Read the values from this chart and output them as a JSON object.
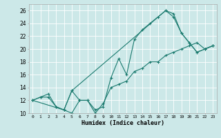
{
  "xlabel": "Humidex (Indice chaleur)",
  "bg_color": "#cce8e8",
  "grid_color": "#ffffff",
  "line_color": "#1a7a6e",
  "xlim": [
    -0.5,
    23.5
  ],
  "ylim": [
    10,
    27
  ],
  "xticks": [
    0,
    1,
    2,
    3,
    4,
    5,
    6,
    7,
    8,
    9,
    10,
    11,
    12,
    13,
    14,
    15,
    16,
    17,
    18,
    19,
    20,
    21,
    22,
    23
  ],
  "yticks": [
    10,
    12,
    14,
    16,
    18,
    20,
    22,
    24,
    26
  ],
  "line1_x": [
    0,
    1,
    2,
    3,
    4,
    5,
    6,
    7,
    8,
    9,
    10,
    11,
    12,
    13,
    14,
    15,
    16,
    17,
    18,
    19,
    20,
    21,
    22,
    23
  ],
  "line1_y": [
    12,
    12.5,
    13,
    11,
    10.5,
    13.5,
    12,
    12,
    10.5,
    11,
    15.5,
    18.5,
    16,
    21.5,
    23,
    24,
    25,
    26,
    25,
    22.5,
    21,
    19.5,
    20,
    20.5
  ],
  "line2_x": [
    0,
    1,
    2,
    3,
    4,
    5,
    6,
    7,
    8,
    9,
    10,
    11,
    12,
    13,
    14,
    15,
    16,
    17,
    18,
    19,
    20,
    21,
    22,
    23
  ],
  "line2_y": [
    12,
    12.5,
    12.5,
    11,
    10.5,
    10,
    12,
    12,
    10,
    11.5,
    14,
    14.5,
    15,
    16.5,
    17,
    18,
    18,
    19,
    19.5,
    20,
    20.5,
    21,
    20,
    20.5
  ],
  "line3_x": [
    0,
    4,
    5,
    17,
    18,
    19,
    20,
    21,
    22,
    23
  ],
  "line3_y": [
    12,
    10.5,
    13.5,
    26,
    25.5,
    22.5,
    21,
    19.5,
    20,
    20.5
  ]
}
